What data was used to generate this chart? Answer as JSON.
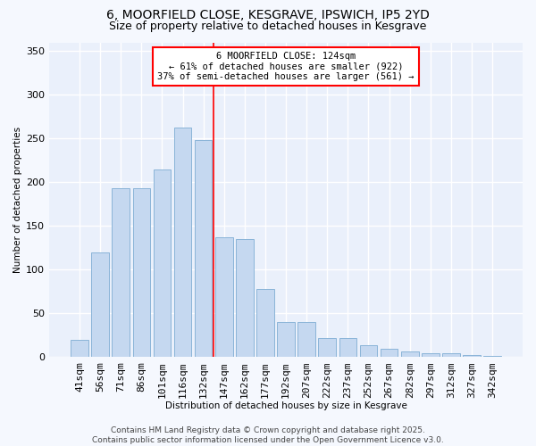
{
  "title_line1": "6, MOORFIELD CLOSE, KESGRAVE, IPSWICH, IP5 2YD",
  "title_line2": "Size of property relative to detached houses in Kesgrave",
  "xlabel": "Distribution of detached houses by size in Kesgrave",
  "ylabel": "Number of detached properties",
  "bar_labels": [
    "41sqm",
    "56sqm",
    "71sqm",
    "86sqm",
    "101sqm",
    "116sqm",
    "132sqm",
    "147sqm",
    "162sqm",
    "177sqm",
    "192sqm",
    "207sqm",
    "222sqm",
    "237sqm",
    "252sqm",
    "267sqm",
    "282sqm",
    "297sqm",
    "312sqm",
    "327sqm",
    "342sqm"
  ],
  "bar_values": [
    20,
    120,
    193,
    193,
    215,
    263,
    248,
    137,
    135,
    78,
    40,
    40,
    22,
    22,
    14,
    10,
    7,
    5,
    5,
    3,
    1
  ],
  "bar_color": "#c5d8f0",
  "bar_edgecolor": "#8ab4d8",
  "background_color": "#f5f8fe",
  "plot_bg_color": "#eaf0fb",
  "grid_color": "#ffffff",
  "annotation_text": "6 MOORFIELD CLOSE: 124sqm\n← 61% of detached houses are smaller (922)\n37% of semi-detached houses are larger (561) →",
  "red_line_x": 6.5,
  "ylim": [
    0,
    360
  ],
  "yticks": [
    0,
    50,
    100,
    150,
    200,
    250,
    300,
    350
  ],
  "title_fontsize": 10,
  "subtitle_fontsize": 9,
  "axis_fontsize": 7.5,
  "tick_fontsize": 8,
  "footer_fontsize": 6.5,
  "footer_line1": "Contains HM Land Registry data © Crown copyright and database right 2025.",
  "footer_line2": "Contains public sector information licensed under the Open Government Licence v3.0."
}
